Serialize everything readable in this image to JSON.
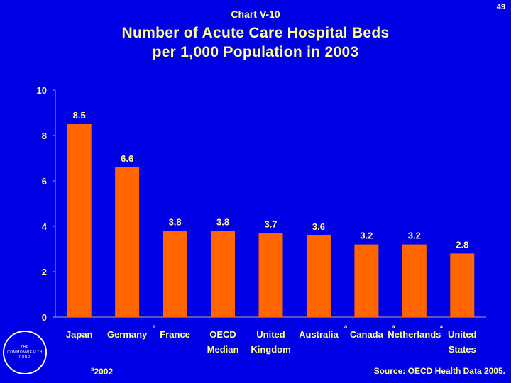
{
  "page_number": "49",
  "chart_label": "Chart V-10",
  "title_line1": "Number of Acute Care Hospital Beds",
  "title_line2": "per 1,000 Population in 2003",
  "logo_text": [
    "THE",
    "COMMONWEALTH",
    "FUND"
  ],
  "footnote_marker": "a",
  "footnote_text": "2002",
  "source": "Source: OECD Health Data 2005.",
  "colors": {
    "background": "#0000E6",
    "bar": "#FF6600",
    "text_accent": "#FFFF99",
    "text": "#FFFFFF"
  },
  "chart_data": {
    "type": "bar",
    "title": "Number of Acute Care Hospital Beds per 1,000 Population in 2003",
    "categories": [
      {
        "line1": "Japan",
        "line2": "",
        "marker": ""
      },
      {
        "line1": "Germany",
        "line2": "",
        "marker": "a"
      },
      {
        "line1": "France",
        "line2": "",
        "marker": ""
      },
      {
        "line1": "OECD",
        "line2": "Median",
        "marker": ""
      },
      {
        "line1": "United",
        "line2": "Kingdom",
        "marker": ""
      },
      {
        "line1": "Australia",
        "line2": "",
        "marker": "a"
      },
      {
        "line1": "Canada",
        "line2": "",
        "marker": "a"
      },
      {
        "line1": "Netherlands",
        "line2": "",
        "marker": "a"
      },
      {
        "line1": "United",
        "line2": "States",
        "marker": ""
      }
    ],
    "values": [
      8.5,
      6.6,
      3.8,
      3.8,
      3.7,
      3.6,
      3.2,
      3.2,
      2.8
    ],
    "value_labels": [
      "8.5",
      "6.6",
      "3.8",
      "3.8",
      "3.7",
      "3.6",
      "3.2",
      "3.2",
      "2.8"
    ],
    "ylim": [
      0,
      10
    ],
    "yticks": [
      0,
      2,
      4,
      6,
      8,
      10
    ],
    "ytick_labels": [
      "0",
      "2",
      "4",
      "6",
      "8",
      "10"
    ],
    "grid": false,
    "legend": "none"
  }
}
